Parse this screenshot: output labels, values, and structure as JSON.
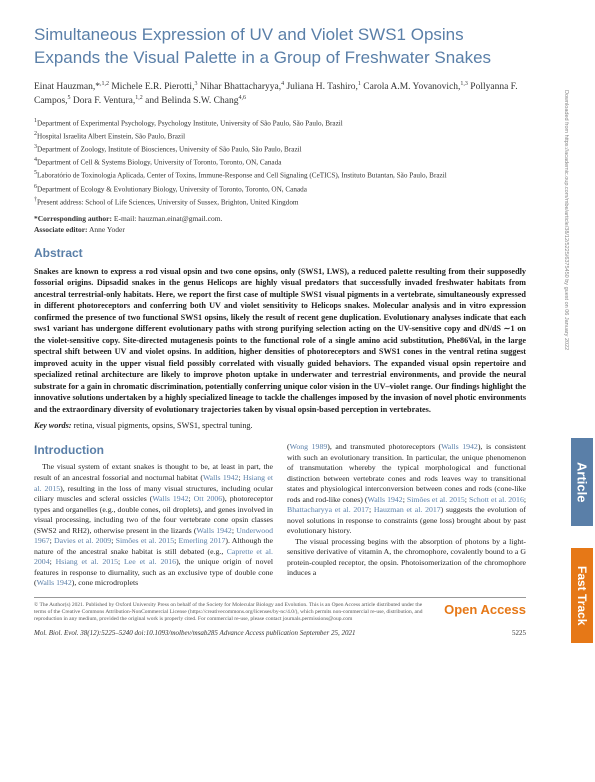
{
  "title": "Simultaneous Expression of UV and Violet SWS1 Opsins Expands the Visual Palette in a Group of Freshwater Snakes",
  "authors_html": "Einat Hauzman,*<sup>,1,2</sup> Michele E.R. Pierotti,<sup>3</sup> Nihar Bhattacharyya,<sup>4</sup> Juliana H. Tashiro,<sup>1</sup> Carola A.M. Yovanovich,<sup>1,3</sup> Pollyanna F. Campos,<sup>5</sup> Dora F. Ventura,<sup>1,2</sup> and Belinda S.W. Chang<sup>4,6</sup>",
  "affiliations": [
    "1 Department of Experimental Psychology, Psychology Institute, University of São Paulo, São Paulo, Brazil",
    "2 Hospital Israelita Albert Einstein, São Paulo, Brazil",
    "3 Department of Zoology, Institute of Biosciences, University of São Paulo, São Paulo, Brazil",
    "4 Department of Cell & Systems Biology, University of Toronto, Toronto, ON, Canada",
    "5 Laboratório de Toxinologia Aplicada, Center of Toxins, Immune-Response and Cell Signaling (CeTICS), Instituto Butantan, São Paulo, Brazil",
    "6 Department of Ecology & Evolutionary Biology, University of Toronto, Toronto, ON, Canada",
    "† Present address: School of Life Sciences, University of Sussex, Brighton, United Kingdom"
  ],
  "corresponding_label": "*Corresponding author:",
  "corresponding_email": "E-mail: hauzman.einat@gmail.com.",
  "associate_label": "Associate editor:",
  "associate_name": "Anne Yoder",
  "abstract_heading": "Abstract",
  "abstract_text": "Snakes are known to express a rod visual opsin and two cone opsins, only (SWS1, LWS), a reduced palette resulting from their supposedly fossorial origins. Dipsadid snakes in the genus Helicops are highly visual predators that successfully invaded freshwater habitats from ancestral terrestrial-only habitats. Here, we report the first case of multiple SWS1 visual pigments in a vertebrate, simultaneously expressed in different photoreceptors and conferring both UV and violet sensitivity to Helicops snakes. Molecular analysis and in vitro expression confirmed the presence of two functional SWS1 opsins, likely the result of recent gene duplication. Evolutionary analyses indicate that each sws1 variant has undergone different evolutionary paths with strong purifying selection acting on the UV-sensitive copy and dN/dS ∼1 on the violet-sensitive copy. Site-directed mutagenesis points to the functional role of a single amino acid substitution, Phe86Val, in the large spectral shift between UV and violet opsins. In addition, higher densities of photoreceptors and SWS1 cones in the ventral retina suggest improved acuity in the upper visual field possibly correlated with visually guided behaviors. The expanded visual opsin repertoire and specialized retinal architecture are likely to improve photon uptake in underwater and terrestrial environments, and provide the neural substrate for a gain in chromatic discrimination, potentially conferring unique color vision in the UV–violet range. Our findings highlight the innovative solutions undertaken by a highly specialized lineage to tackle the challenges imposed by the invasion of novel photic environments and the extraordinary diversity of evolutionary trajectories taken by visual opsin-based perception in vertebrates.",
  "keywords_label": "Key words:",
  "keywords_text": "retina, visual pigments, opsins, SWS1, spectral tuning.",
  "intro_heading": "Introduction",
  "col1_html": "The visual system of extant snakes is thought to be, at least in part, the result of an ancestral fossorial and nocturnal habitat (<span class='cite'>Walls 1942</span>; <span class='cite'>Hsiang et al. 2015</span>), resulting in the loss of many visual structures, including ocular ciliary muscles and scleral ossicles (<span class='cite'>Walls 1942</span>; <span class='cite'>Ott 2006</span>), photoreceptor types and organelles (e.g., double cones, oil droplets), and genes involved in visual processing, including two of the four vertebrate cone opsin classes (SWS2 and RH2), otherwise present in the lizards (<span class='cite'>Walls 1942</span>; <span class='cite'>Underwood 1967</span>; <span class='cite'>Davies et al. 2009</span>; <span class='cite'>Simões et al. 2015</span>; <span class='cite'>Emerling 2017</span>). Although the nature of the ancestral snake habitat is still debated (e.g., <span class='cite'>Caprette et al. 2004</span>; <span class='cite'>Hsiang et al. 2015</span>; <span class='cite'>Lee et al. 2016</span>), the unique origin of novel features in response to diurnality, such as an exclusive type of double cone (<span class='cite'>Walls 1942</span>), cone microdroplets",
  "col2_p1_html": "(<span class='cite'>Wong 1989</span>), and transmuted photoreceptors (<span class='cite'>Walls 1942</span>), is consistent with such an evolutionary transition. In particular, the unique phenomenon of transmutation whereby the typical morphological and functional distinction between vertebrate cones and rods leaves way to transitional states and physiological interconversion between cones and rods (cone-like rods and rod-like cones) (<span class='cite'>Walls 1942</span>; <span class='cite'>Simões et al. 2015</span>; <span class='cite'>Schott et al. 2016</span>; <span class='cite'>Bhattacharyya et al. 2017</span>; <span class='cite'>Hauzman et al. 2017</span>) suggests the evolution of novel solutions in response to constraints (gene loss) brought about by past evolutionary history.",
  "col2_p2_html": "The visual processing begins with the absorption of photons by a light-sensitive derivative of vitamin A, the chromophore, covalently bound to a G protein-coupled receptor, the opsin. Photoisomerization of the chromophore induces a",
  "license_text": "© The Author(s) 2021. Published by Oxford University Press on behalf of the Society for Molecular Biology and Evolution. This is an Open Access article distributed under the terms of the Creative Commons Attribution-NonCommercial License (https://creativecommons.org/licenses/by-nc/4.0/), which permits non-commercial re-use, distribution, and reproduction in any medium, provided the original work is properly cited. For commercial re-use, please contact journals.permissions@oup.com",
  "open_access": "Open Access",
  "journal_ref": "Mol. Biol. Evol. 38(12):5225–5240   doi:10.1093/molbev/msab285   Advance Access publication September 25, 2021",
  "page_number": "5225",
  "side_article": "Article",
  "side_fast": "Fast Track",
  "download_note": "Downloaded from https://academic.oup.com/mbe/article/38/12/5225/6375450 by guest on 06 January 2022"
}
